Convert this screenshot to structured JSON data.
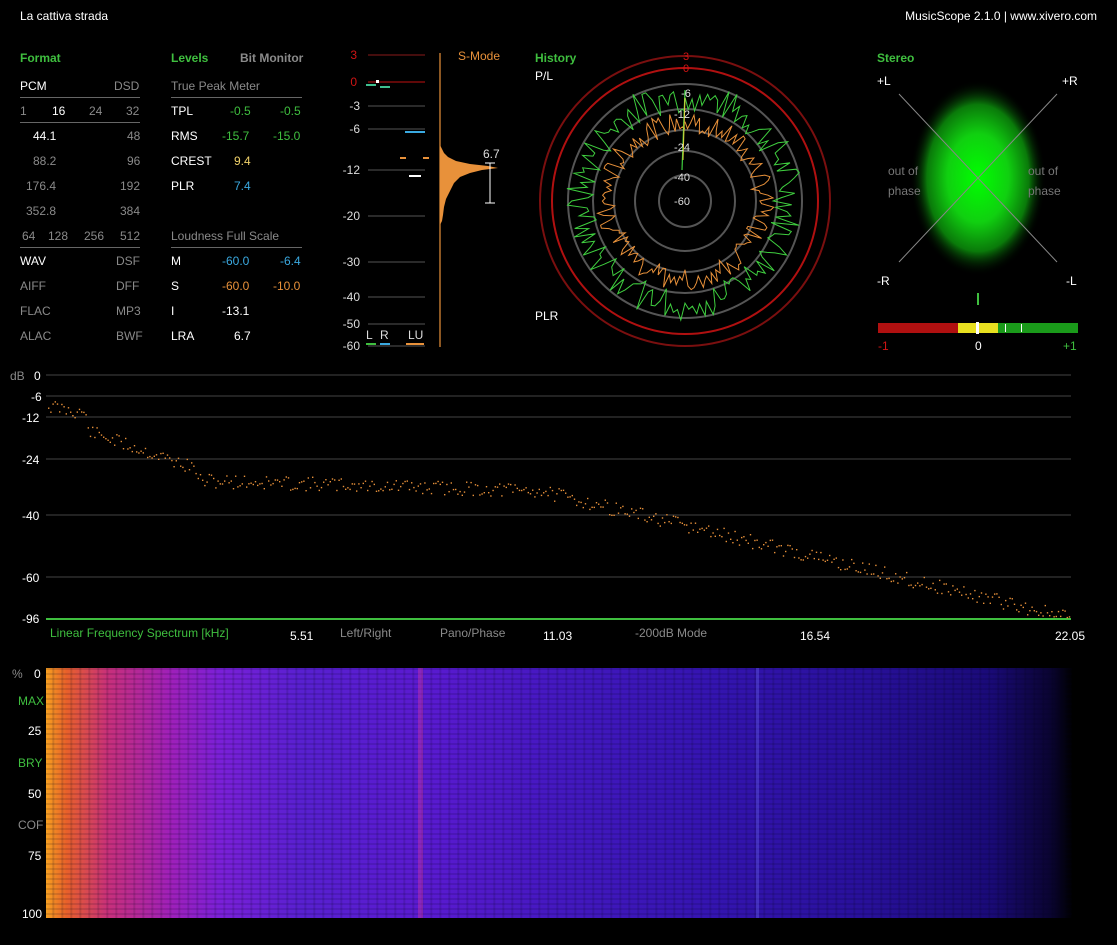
{
  "window": {
    "title": "La cattiva strada",
    "app_info": "MusicScope 2.1.0 | www.xivero.com"
  },
  "format": {
    "header": "Format",
    "pcm": "PCM",
    "dsd": "DSD",
    "bits": [
      "1",
      "16",
      "24",
      "32"
    ],
    "rates_left": [
      "44.1",
      "88.2",
      "176.4",
      "352.8"
    ],
    "rates_right": [
      "48",
      "96",
      "192",
      "384"
    ],
    "dsd_rates": [
      "64",
      "128",
      "256",
      "512"
    ],
    "containers_left": [
      "WAV",
      "AIFF",
      "FLAC",
      "ALAC"
    ],
    "containers_right": [
      "DSF",
      "DFF",
      "MP3",
      "BWF"
    ]
  },
  "levels": {
    "header": "Levels",
    "bit_monitor": "Bit Monitor",
    "true_peak_title": "True Peak Meter",
    "tp_rows": [
      {
        "label": "TPL",
        "left": "-0.5",
        "right": "-0.5"
      },
      {
        "label": "RMS",
        "left": "-15.7",
        "right": "-15.0"
      },
      {
        "label": "CREST",
        "left": "9.4",
        "right": ""
      },
      {
        "label": "PLR",
        "left": "7.4",
        "right": ""
      }
    ],
    "loudness_title": "Loudness Full Scale",
    "lu_rows": [
      {
        "label": "M",
        "left": "-60.0",
        "right": "-6.4"
      },
      {
        "label": "S",
        "left": "-60.0",
        "right": "-10.0"
      },
      {
        "label": "I",
        "left": "-13.1",
        "right": ""
      },
      {
        "label": "LRA",
        "left": "6.7",
        "right": ""
      }
    ]
  },
  "meter": {
    "scale": [
      "3",
      "0",
      "-3",
      "-6",
      "-12",
      "-20",
      "-30",
      "-40",
      "-50",
      "-60"
    ],
    "mode": "S-Mode",
    "lra_value": "6.7",
    "channels": [
      "L",
      "R",
      "LU"
    ]
  },
  "history": {
    "header": "History",
    "top_label": "P/L",
    "bottom_label": "PLR",
    "ring_labels": [
      "3",
      "0",
      "-6",
      "-12",
      "-24",
      "-40",
      "-60"
    ]
  },
  "stereo": {
    "header": "Stereo",
    "corners": [
      "+L",
      "+R",
      "-R",
      "-L"
    ],
    "out_of_phase_left": [
      "out of",
      "phase"
    ],
    "out_of_phase_right": [
      "out of",
      "phase"
    ],
    "correlation_labels": [
      "-1",
      "0",
      "+1"
    ]
  },
  "spectrum": {
    "db_label": "dB",
    "db_ticks": [
      "0",
      "-6",
      "-12",
      "-24",
      "-40",
      "-60",
      "-96"
    ],
    "title": "Linear Frequency Spectrum [kHz]",
    "freq_ticks": [
      "5.51",
      "11.03",
      "16.54",
      "22.05"
    ],
    "menu": [
      "Left/Right",
      "Pano/Phase",
      "-200dB Mode"
    ]
  },
  "spectrogram": {
    "pct_label": "%",
    "ticks": [
      "0",
      "25",
      "50",
      "75",
      "100"
    ],
    "palettes": [
      "MAX",
      "BRY",
      "COF"
    ]
  },
  "colors": {
    "accent_green": "#3fbf3f",
    "orange": "#e8913a",
    "blue": "#3aa9e0",
    "red": "#c01010"
  }
}
